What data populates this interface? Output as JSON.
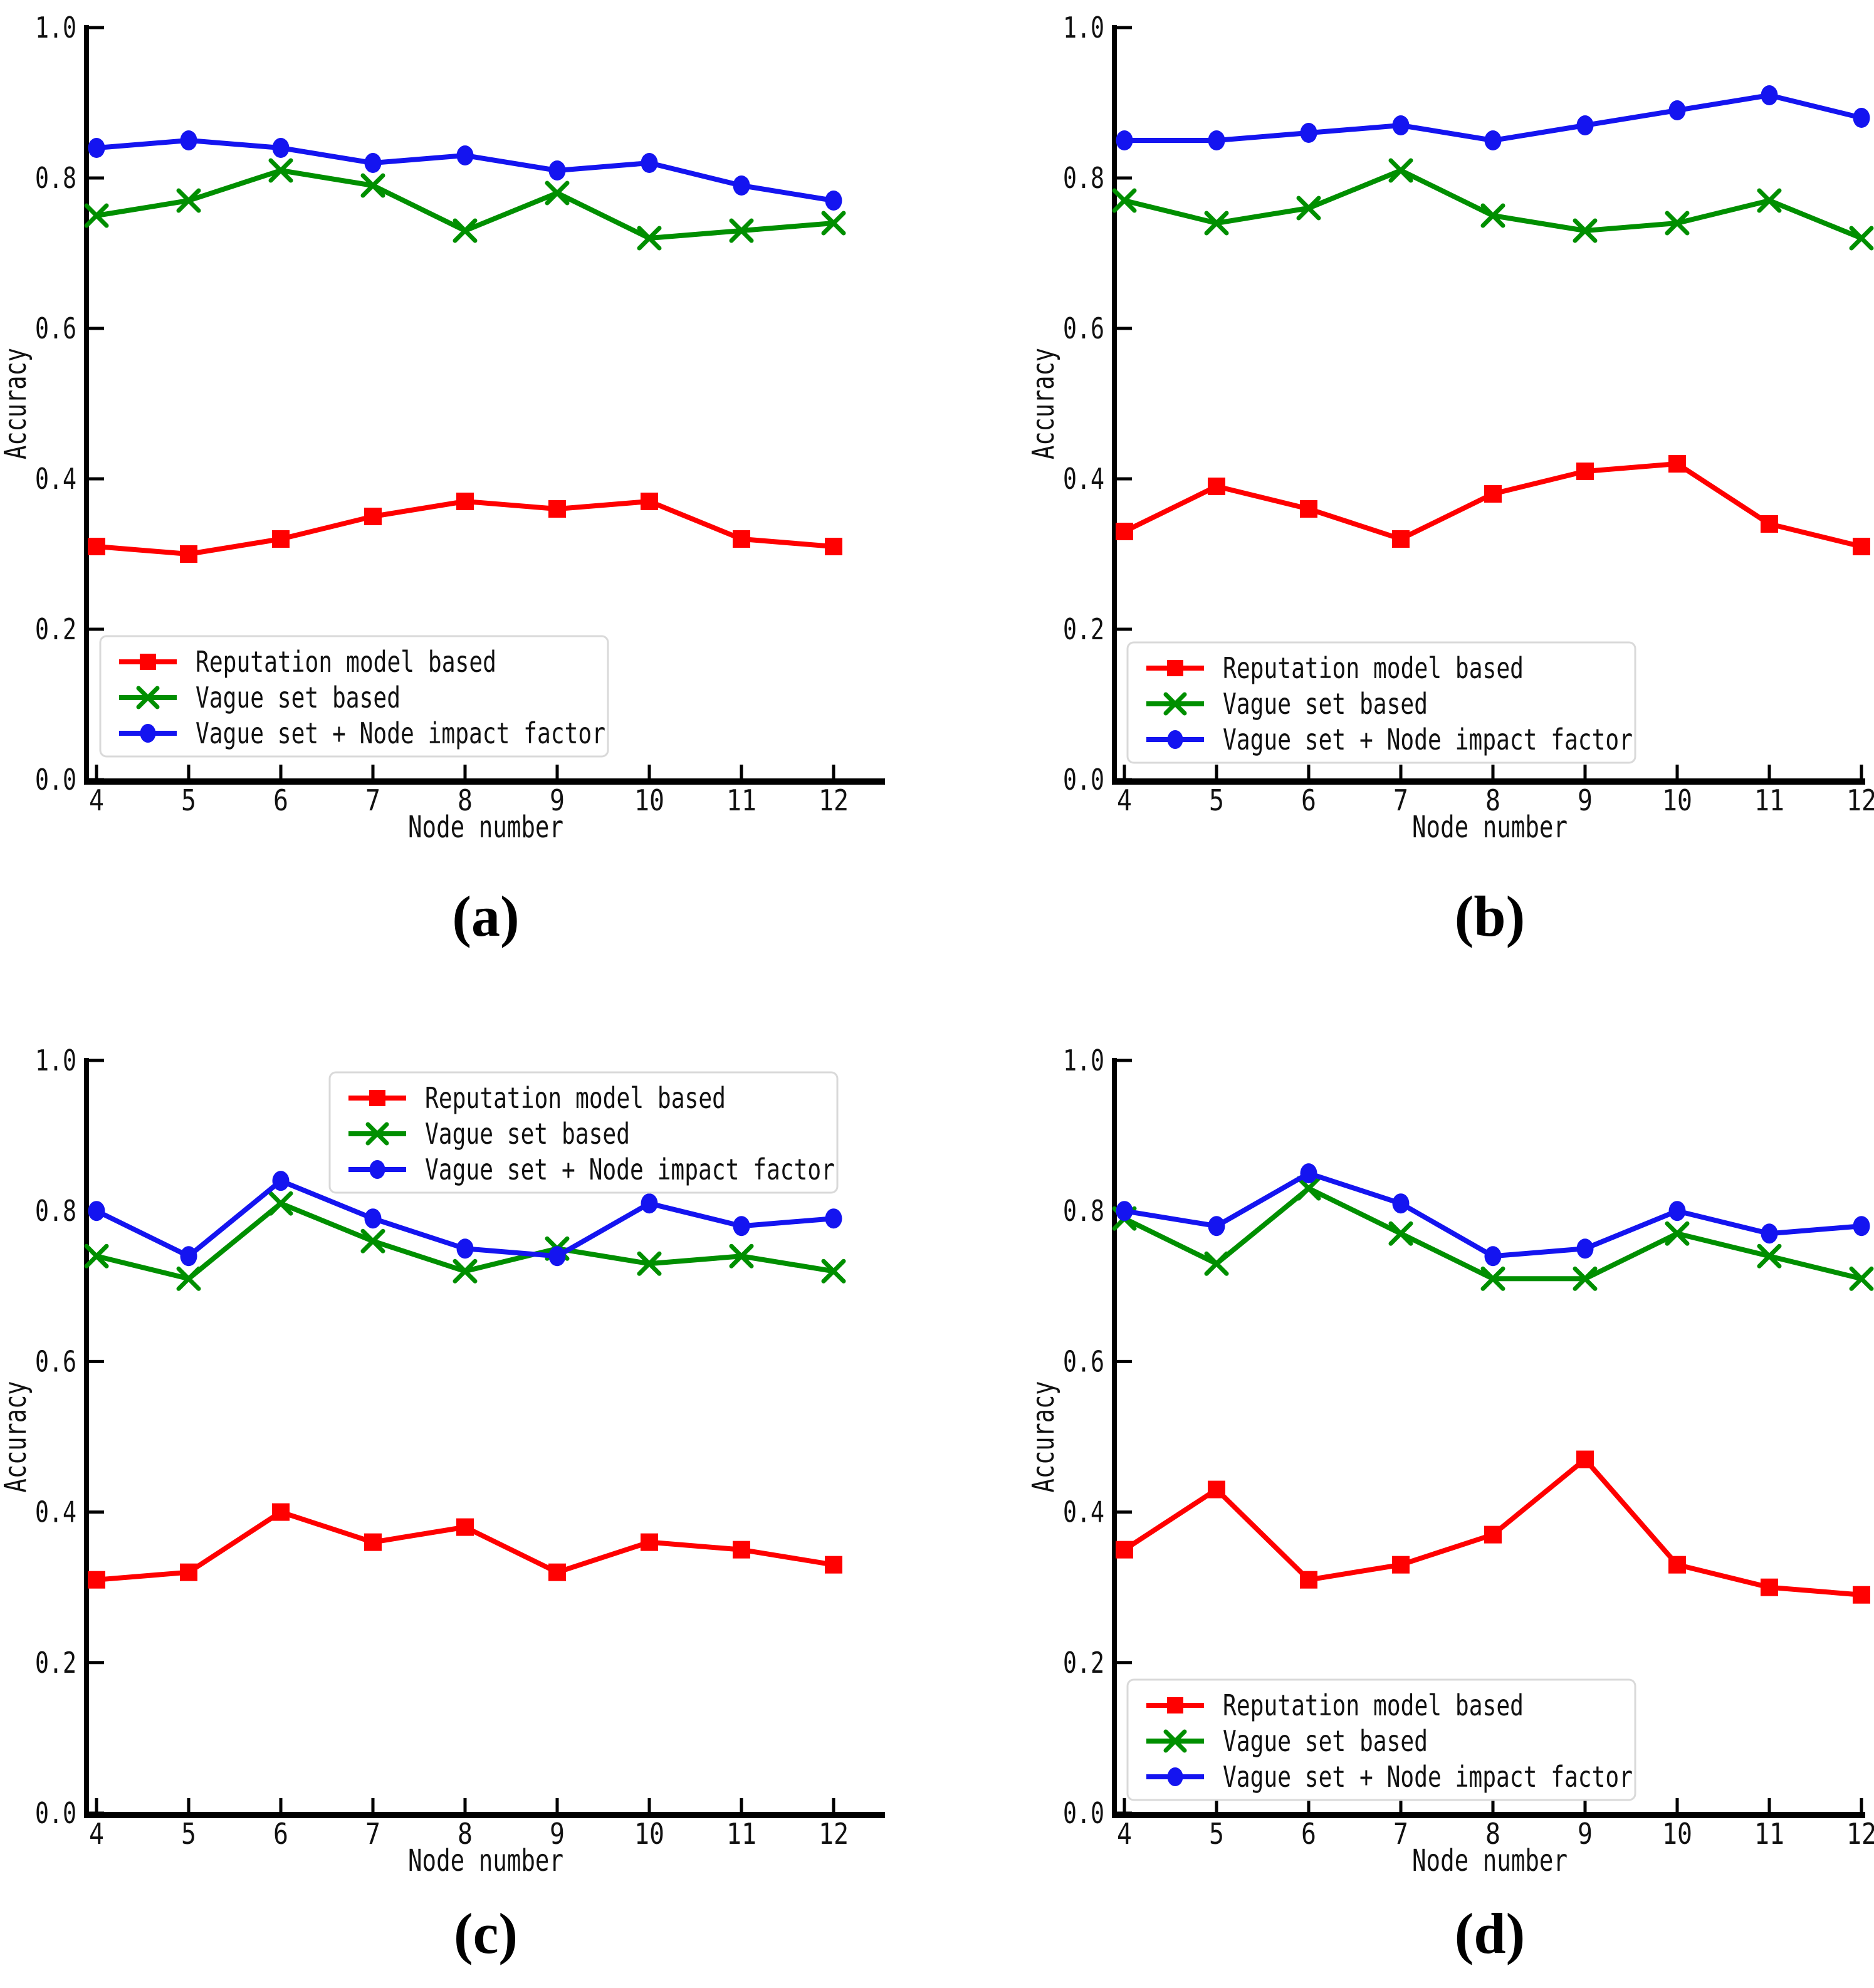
{
  "page": {
    "background": "#ffffff"
  },
  "colors": {
    "reputation": "#ff0000",
    "vague_set": "#008f00",
    "vague_set_nif": "#1414f0",
    "axis": "#000000",
    "legend_border": "#d9d9d9",
    "legend_fill": "#ffffff"
  },
  "chart_data": [
    {
      "id": "a",
      "caption": "(a)",
      "type": "line",
      "x": [
        4,
        5,
        6,
        7,
        8,
        9,
        10,
        11,
        12
      ],
      "xlabel": "Node number",
      "ylabel": "Accuracy",
      "ylim": [
        0.0,
        1.0
      ],
      "yticks": [
        "0.0",
        "0.2",
        "0.4",
        "0.6",
        "0.8",
        "1.0"
      ],
      "grid": "off",
      "legend_position": "bottom-left",
      "series": [
        {
          "name": "Reputation model based",
          "marker": "square",
          "color": "#ff0000",
          "values": [
            0.31,
            0.3,
            0.32,
            0.35,
            0.37,
            0.36,
            0.37,
            0.32,
            0.31
          ]
        },
        {
          "name": "Vague set based",
          "marker": "x",
          "color": "#008f00",
          "values": [
            0.75,
            0.77,
            0.81,
            0.79,
            0.73,
            0.78,
            0.72,
            0.73,
            0.74
          ]
        },
        {
          "name": "Vague set + Node impact factor",
          "marker": "circle",
          "color": "#1414f0",
          "values": [
            0.84,
            0.85,
            0.84,
            0.82,
            0.83,
            0.81,
            0.82,
            0.79,
            0.77
          ]
        }
      ]
    },
    {
      "id": "b",
      "caption": "(b)",
      "type": "line",
      "x": [
        4,
        5,
        6,
        7,
        8,
        9,
        10,
        11,
        12
      ],
      "xlabel": "Node number",
      "ylabel": "Accuracy",
      "ylim": [
        0.0,
        1.0
      ],
      "yticks": [
        "0.0",
        "0.2",
        "0.4",
        "0.6",
        "0.8",
        "1.0"
      ],
      "grid": "off",
      "legend_position": "bottom-left",
      "series": [
        {
          "name": "Reputation model based",
          "marker": "square",
          "color": "#ff0000",
          "values": [
            0.33,
            0.39,
            0.36,
            0.32,
            0.38,
            0.41,
            0.42,
            0.34,
            0.31
          ]
        },
        {
          "name": "Vague set based",
          "marker": "x",
          "color": "#008f00",
          "values": [
            0.77,
            0.74,
            0.76,
            0.81,
            0.75,
            0.73,
            0.74,
            0.77,
            0.72
          ]
        },
        {
          "name": "Vague set + Node impact factor",
          "marker": "circle",
          "color": "#1414f0",
          "values": [
            0.85,
            0.85,
            0.86,
            0.87,
            0.85,
            0.87,
            0.89,
            0.91,
            0.88
          ]
        }
      ]
    },
    {
      "id": "c",
      "caption": "(c)",
      "type": "line",
      "x": [
        4,
        5,
        6,
        7,
        8,
        9,
        10,
        11,
        12
      ],
      "xlabel": "Node number",
      "ylabel": "Accuracy",
      "ylim": [
        0.0,
        1.0
      ],
      "yticks": [
        "0.0",
        "0.2",
        "0.4",
        "0.6",
        "0.8",
        "1.0"
      ],
      "grid": "off",
      "legend_position": "top-center",
      "series": [
        {
          "name": "Reputation model based",
          "marker": "square",
          "color": "#ff0000",
          "values": [
            0.31,
            0.32,
            0.4,
            0.36,
            0.38,
            0.32,
            0.36,
            0.35,
            0.33
          ]
        },
        {
          "name": "Vague set based",
          "marker": "x",
          "color": "#008f00",
          "values": [
            0.74,
            0.71,
            0.81,
            0.76,
            0.72,
            0.75,
            0.73,
            0.74,
            0.72
          ]
        },
        {
          "name": "Vague set + Node impact factor",
          "marker": "circle",
          "color": "#1414f0",
          "values": [
            0.8,
            0.74,
            0.84,
            0.79,
            0.75,
            0.74,
            0.81,
            0.78,
            0.79
          ]
        }
      ]
    },
    {
      "id": "d",
      "caption": "(d)",
      "type": "line",
      "x": [
        4,
        5,
        6,
        7,
        8,
        9,
        10,
        11,
        12
      ],
      "xlabel": "Node number",
      "ylabel": "Accuracy",
      "ylim": [
        0.0,
        1.0
      ],
      "yticks": [
        "0.0",
        "0.2",
        "0.4",
        "0.6",
        "0.8",
        "1.0"
      ],
      "grid": "off",
      "legend_position": "bottom-left",
      "series": [
        {
          "name": "Reputation model based",
          "marker": "square",
          "color": "#ff0000",
          "values": [
            0.35,
            0.43,
            0.31,
            0.33,
            0.37,
            0.47,
            0.33,
            0.3,
            0.29
          ]
        },
        {
          "name": "Vague set based",
          "marker": "x",
          "color": "#008f00",
          "values": [
            0.79,
            0.73,
            0.83,
            0.77,
            0.71,
            0.71,
            0.77,
            0.74,
            0.71
          ]
        },
        {
          "name": "Vague set + Node impact factor",
          "marker": "circle",
          "color": "#1414f0",
          "values": [
            0.8,
            0.78,
            0.85,
            0.81,
            0.74,
            0.75,
            0.8,
            0.77,
            0.78
          ]
        }
      ]
    }
  ]
}
